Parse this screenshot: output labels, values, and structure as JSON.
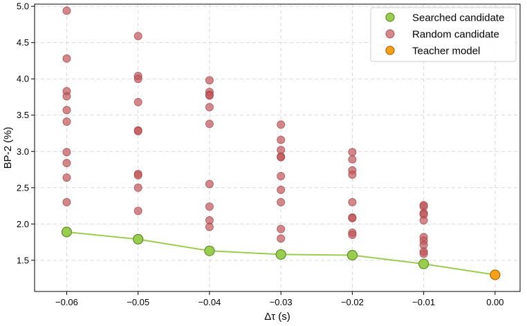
{
  "chart_data": {
    "type": "scatter",
    "xlabel": "Δτ (s)",
    "ylabel": "BP-2 (%)",
    "xlim": [
      -0.0645,
      0.0035
    ],
    "ylim": [
      1.07,
      5.03
    ],
    "xticks": [
      -0.06,
      -0.05,
      -0.04,
      -0.03,
      -0.02,
      -0.01,
      0.0
    ],
    "xtick_labels": [
      "−0.06",
      "−0.05",
      "−0.04",
      "−0.03",
      "−0.02",
      "−0.01",
      "0.00"
    ],
    "yticks": [
      1.5,
      2.0,
      2.5,
      3.0,
      3.5,
      4.0,
      4.5,
      5.0
    ],
    "ytick_labels": [
      "1.5",
      "2.0",
      "2.5",
      "3.0",
      "3.5",
      "4.0",
      "4.5",
      "5.0"
    ],
    "grid": true,
    "legend_position": "top-right",
    "series": [
      {
        "name": "Searched candidate",
        "color": "#9acd4e",
        "edge_color": "#5a8f2a",
        "line": true,
        "x": [
          -0.06,
          -0.05,
          -0.04,
          -0.03,
          -0.02,
          -0.01
        ],
        "y": [
          1.89,
          1.79,
          1.63,
          1.58,
          1.57,
          1.45
        ]
      },
      {
        "name": "Random candidate",
        "color": "#c0575a",
        "line": false,
        "x": [
          -0.06,
          -0.06,
          -0.06,
          -0.06,
          -0.06,
          -0.06,
          -0.06,
          -0.06,
          -0.06,
          -0.06,
          -0.05,
          -0.05,
          -0.05,
          -0.05,
          -0.05,
          -0.05,
          -0.05,
          -0.05,
          -0.05,
          -0.05,
          -0.05,
          -0.04,
          -0.04,
          -0.04,
          -0.04,
          -0.04,
          -0.04,
          -0.04,
          -0.04,
          -0.04,
          -0.04,
          -0.03,
          -0.03,
          -0.03,
          -0.03,
          -0.03,
          -0.03,
          -0.03,
          -0.03,
          -0.03,
          -0.03,
          -0.02,
          -0.02,
          -0.02,
          -0.02,
          -0.02,
          -0.02,
          -0.02,
          -0.02,
          -0.02,
          -0.02,
          -0.01,
          -0.01,
          -0.01,
          -0.01,
          -0.01,
          -0.01,
          -0.01,
          -0.01,
          -0.01,
          -0.01,
          -0.01
        ],
        "y": [
          4.94,
          4.28,
          3.83,
          3.76,
          3.57,
          3.41,
          2.99,
          2.84,
          2.64,
          2.3,
          4.59,
          4.04,
          4.0,
          3.68,
          3.29,
          3.28,
          2.69,
          2.67,
          2.5,
          2.18,
          1.78,
          3.98,
          3.82,
          3.78,
          3.77,
          3.61,
          3.38,
          2.55,
          2.24,
          2.05,
          1.96,
          3.37,
          3.16,
          3.02,
          2.93,
          2.92,
          2.66,
          2.47,
          2.3,
          1.93,
          1.8,
          2.99,
          2.89,
          2.74,
          2.68,
          2.3,
          2.09,
          2.08,
          1.88,
          1.85,
          1.57,
          2.26,
          2.24,
          2.15,
          2.13,
          2.05,
          1.82,
          1.77,
          1.71,
          1.62,
          1.59,
          1.44
        ]
      },
      {
        "name": "Teacher model",
        "color": "#f5a01a",
        "edge_color": "#b36b00",
        "line": false,
        "x": [
          0.0
        ],
        "y": [
          1.3
        ]
      }
    ]
  }
}
